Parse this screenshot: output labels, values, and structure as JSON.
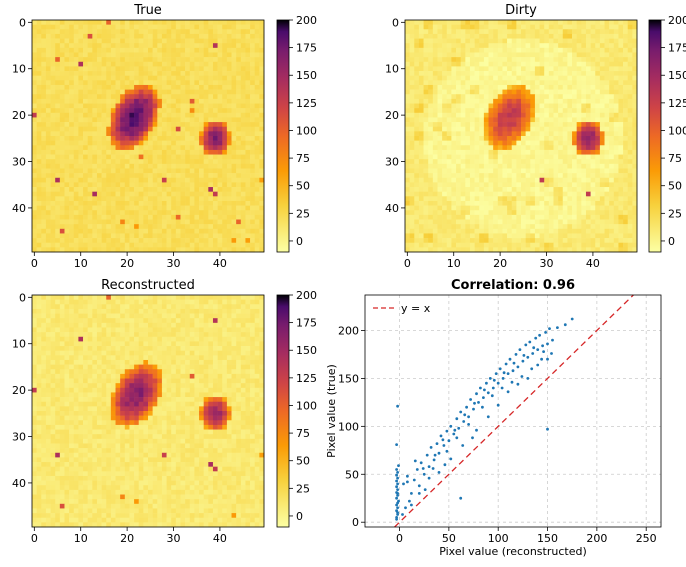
{
  "chart_data": [
    {
      "type": "heatmap",
      "title": "True",
      "xticks": [
        0,
        10,
        20,
        30,
        40
      ],
      "yticks": [
        0,
        10,
        20,
        30,
        40
      ],
      "grid_size": [
        50,
        50
      ],
      "colorbar": {
        "colormap": "inferno_r",
        "range": [
          -10,
          200
        ],
        "ticks": [
          0,
          25,
          50,
          75,
          100,
          125,
          150,
          175,
          200
        ]
      },
      "background_value": 20,
      "blobs": [
        {
          "label": "large blob",
          "center_x": 21.5,
          "center_y": 20.5,
          "peak": 190
        },
        {
          "label": "small blob",
          "center_x": 39,
          "center_y": 25,
          "peak": 170
        }
      ],
      "outliers": [
        [
          16,
          0
        ],
        [
          12,
          3
        ],
        [
          5,
          8
        ],
        [
          10,
          9
        ],
        [
          39,
          5
        ],
        [
          34,
          17
        ],
        [
          34,
          19
        ],
        [
          0,
          20
        ],
        [
          36,
          24
        ],
        [
          31,
          23
        ],
        [
          23,
          29
        ],
        [
          5,
          34
        ],
        [
          28,
          34
        ],
        [
          38,
          36
        ],
        [
          39,
          37
        ],
        [
          13,
          37
        ],
        [
          19,
          43
        ],
        [
          44,
          43
        ],
        [
          31,
          42
        ],
        [
          22,
          44
        ],
        [
          6,
          45
        ],
        [
          43,
          47
        ],
        [
          46,
          47
        ],
        [
          49,
          34
        ]
      ]
    },
    {
      "type": "heatmap",
      "title": "Dirty",
      "xticks": [
        0,
        10,
        20,
        30,
        40
      ],
      "yticks": [
        0,
        10,
        20,
        30,
        40
      ],
      "grid_size": [
        50,
        50
      ],
      "colorbar": {
        "colormap": "inferno_r",
        "range": [
          -10,
          200
        ],
        "ticks": [
          0,
          25,
          50,
          75,
          100,
          125,
          150,
          175,
          200
        ]
      },
      "background_value": 2,
      "blobs": [
        {
          "label": "large blob",
          "center_x": 22,
          "center_y": 20.5,
          "peak": 130
        },
        {
          "label": "small blob",
          "center_x": 39,
          "center_y": 25,
          "peak": 160
        }
      ],
      "outliers": [
        [
          29,
          34
        ],
        [
          39,
          37
        ]
      ]
    },
    {
      "type": "heatmap",
      "title": "Reconstructed",
      "xticks": [
        0,
        10,
        20,
        30,
        40
      ],
      "yticks": [
        0,
        10,
        20,
        30,
        40
      ],
      "grid_size": [
        50,
        50
      ],
      "colorbar": {
        "colormap": "inferno_r",
        "range": [
          -10,
          200
        ],
        "ticks": [
          0,
          25,
          50,
          75,
          100,
          125,
          150,
          175,
          200
        ]
      },
      "background_value": 10,
      "blobs": [
        {
          "label": "large blob",
          "center_x": 22,
          "center_y": 21,
          "peak": 165
        },
        {
          "label": "small blob",
          "center_x": 39,
          "center_y": 25,
          "peak": 155
        }
      ],
      "outliers": [
        [
          16,
          0
        ],
        [
          39,
          5
        ],
        [
          10,
          9
        ],
        [
          34,
          17
        ],
        [
          0,
          20
        ],
        [
          5,
          34
        ],
        [
          28,
          34
        ],
        [
          38,
          36
        ],
        [
          39,
          37
        ],
        [
          19,
          43
        ],
        [
          22,
          44
        ],
        [
          6,
          45
        ],
        [
          43,
          47
        ],
        [
          49,
          34
        ]
      ]
    },
    {
      "type": "scatter",
      "title": "Correlation: 0.96",
      "xlabel": "Pixel value (reconstructed)",
      "ylabel": "Pixel value (true)",
      "xlim": [
        -35,
        265
      ],
      "ylim": [
        -5,
        237
      ],
      "xticks": [
        0,
        50,
        100,
        150,
        200,
        250
      ],
      "yticks": [
        0,
        50,
        100,
        150,
        200
      ],
      "grid": true,
      "legend": {
        "position": "top-left",
        "entries": [
          "y = x"
        ]
      },
      "reference_line": {
        "label": "y = x",
        "color": "#d62728",
        "style": "dashed"
      },
      "points": [
        [
          -3,
          5
        ],
        [
          -2,
          8
        ],
        [
          -3,
          12
        ],
        [
          -2,
          15
        ],
        [
          -3,
          18
        ],
        [
          -1,
          22
        ],
        [
          -3,
          25
        ],
        [
          -2,
          28
        ],
        [
          -3,
          31
        ],
        [
          -2,
          34
        ],
        [
          -3,
          37
        ],
        [
          -2,
          40
        ],
        [
          -3,
          43
        ],
        [
          -2,
          46
        ],
        [
          -3,
          49
        ],
        [
          -2,
          52
        ],
        [
          -3,
          55
        ],
        [
          -1,
          59
        ],
        [
          -3,
          81
        ],
        [
          -2,
          121
        ],
        [
          -3,
          3
        ],
        [
          -2,
          10
        ],
        [
          -2,
          20
        ],
        [
          -2,
          30
        ],
        [
          3,
          8
        ],
        [
          6,
          15
        ],
        [
          10,
          22
        ],
        [
          4,
          40
        ],
        [
          8,
          48
        ],
        [
          12,
          30
        ],
        [
          15,
          44
        ],
        [
          18,
          55
        ],
        [
          20,
          38
        ],
        [
          22,
          62
        ],
        [
          25,
          50
        ],
        [
          28,
          70
        ],
        [
          30,
          58
        ],
        [
          32,
          78
        ],
        [
          35,
          65
        ],
        [
          38,
          82
        ],
        [
          40,
          72
        ],
        [
          42,
          90
        ],
        [
          45,
          80
        ],
        [
          48,
          95
        ],
        [
          50,
          85
        ],
        [
          52,
          100
        ],
        [
          55,
          92
        ],
        [
          58,
          108
        ],
        [
          60,
          98
        ],
        [
          62,
          115
        ],
        [
          65,
          105
        ],
        [
          68,
          120
        ],
        [
          70,
          110
        ],
        [
          72,
          128
        ],
        [
          75,
          118
        ],
        [
          78,
          134
        ],
        [
          80,
          125
        ],
        [
          82,
          140
        ],
        [
          85,
          130
        ],
        [
          88,
          145
        ],
        [
          90,
          135
        ],
        [
          92,
          150
        ],
        [
          95,
          140
        ],
        [
          98,
          155
        ],
        [
          100,
          145
        ],
        [
          102,
          160
        ],
        [
          105,
          150
        ],
        [
          108,
          165
        ],
        [
          110,
          155
        ],
        [
          112,
          170
        ],
        [
          115,
          158
        ],
        [
          118,
          175
        ],
        [
          120,
          162
        ],
        [
          122,
          180
        ],
        [
          125,
          168
        ],
        [
          128,
          185
        ],
        [
          130,
          172
        ],
        [
          132,
          188
        ],
        [
          135,
          176
        ],
        [
          138,
          192
        ],
        [
          140,
          180
        ],
        [
          142,
          195
        ],
        [
          145,
          184
        ],
        [
          148,
          198
        ],
        [
          150,
          186
        ],
        [
          152,
          202
        ],
        [
          155,
          190
        ],
        [
          160,
          203
        ],
        [
          168,
          206
        ],
        [
          175,
          212
        ],
        [
          150,
          97
        ],
        [
          62,
          25
        ],
        [
          16,
          64
        ],
        [
          24,
          56
        ],
        [
          36,
          70
        ],
        [
          44,
          86
        ],
        [
          56,
          96
        ],
        [
          66,
          112
        ],
        [
          76,
          124
        ],
        [
          86,
          138
        ],
        [
          96,
          148
        ],
        [
          106,
          156
        ],
        [
          116,
          166
        ],
        [
          126,
          174
        ],
        [
          136,
          182
        ],
        [
          146,
          178
        ],
        [
          48,
          74
        ],
        [
          58,
          88
        ],
        [
          70,
          102
        ],
        [
          84,
          120
        ],
        [
          94,
          132
        ],
        [
          104,
          140
        ],
        [
          114,
          146
        ],
        [
          124,
          152
        ],
        [
          134,
          160
        ],
        [
          144,
          170
        ],
        [
          154,
          176
        ],
        [
          30,
          46
        ],
        [
          20,
          30
        ],
        [
          12,
          18
        ],
        [
          8,
          42
        ],
        [
          26,
          34
        ],
        [
          40,
          52
        ],
        [
          52,
          66
        ],
        [
          64,
          80
        ],
        [
          78,
          96
        ],
        [
          90,
          110
        ],
        [
          100,
          122
        ],
        [
          110,
          136
        ],
        [
          120,
          144
        ],
        [
          130,
          150
        ],
        [
          140,
          164
        ],
        [
          150,
          170
        ],
        [
          46,
          60
        ],
        [
          34,
          56
        ],
        [
          74,
          88
        ]
      ]
    }
  ]
}
